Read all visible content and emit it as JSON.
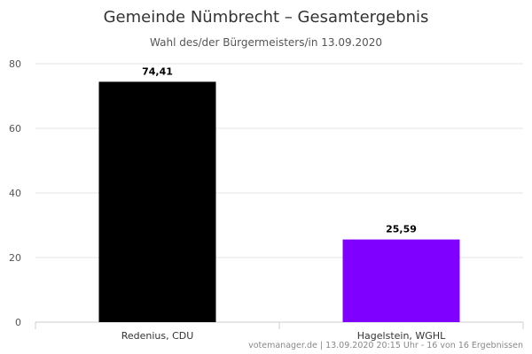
{
  "chart_data": {
    "type": "bar",
    "title": "Gemeinde Nümbrecht – Gesamtergebnis",
    "subtitle": "Wahl des/der Bürgermeisters/in 13.09.2020",
    "categories": [
      "Redenius, CDU",
      "Hagelstein, WGHL"
    ],
    "values": [
      74.41,
      25.59
    ],
    "data_labels": [
      "74,41",
      "25,59"
    ],
    "colors": [
      "#000000",
      "#8000ff"
    ],
    "ylim": [
      0,
      80
    ],
    "yticks": [
      0,
      20,
      40,
      60,
      80
    ],
    "grid": true,
    "legend": "none",
    "xlabel": "",
    "ylabel": ""
  },
  "credits": "votemanager.de | 13.09.2020 20:15 Uhr - 16 von 16 Ergebnissen"
}
